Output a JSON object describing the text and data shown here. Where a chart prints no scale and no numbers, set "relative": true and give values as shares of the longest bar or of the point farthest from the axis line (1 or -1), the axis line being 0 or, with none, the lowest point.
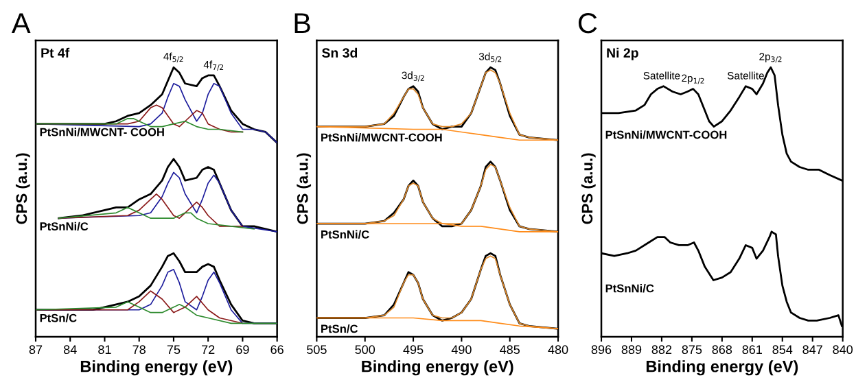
{
  "chart_data": [
    {
      "type": "line",
      "title": "Pt 4f",
      "xlabel": "Binding energy (eV)",
      "ylabel": "CPS (a.u.)",
      "relative": true,
      "tick_labels": "x",
      "grid": false,
      "legend": false,
      "xlim": [
        87,
        66
      ],
      "xticks": [
        87,
        84,
        81,
        78,
        75,
        72,
        69,
        66
      ],
      "annotations": [
        "A",
        {
          "text": "4f$_{5/2}$",
          "x": 75,
          "y": 1.0
        },
        {
          "text": "4f$_{7/2}$",
          "x": 71.5,
          "y": 0.97
        }
      ],
      "series": [
        {
          "name": "PtSnNi/MWCNT- COOH",
          "color": "#000000",
          "x": [
            87,
            85,
            83,
            81,
            80,
            79,
            78,
            77,
            76,
            75.5,
            75,
            74.5,
            74,
            73,
            72.5,
            72,
            71.5,
            71,
            70,
            69,
            68,
            67,
            66
          ],
          "values": [
            0.79,
            0.79,
            0.79,
            0.79,
            0.8,
            0.82,
            0.83,
            0.86,
            0.9,
            0.95,
            1.0,
            0.98,
            0.94,
            0.93,
            0.96,
            0.97,
            0.97,
            0.93,
            0.84,
            0.79,
            0.77,
            0.76,
            0.72
          ]
        },
        {
          "color": "#1c1c9c",
          "x": [
            87,
            78,
            77,
            76,
            75.5,
            75,
            74.5,
            74,
            73,
            72.5,
            72,
            71.5,
            71,
            70,
            69,
            68,
            67,
            66
          ],
          "values": [
            0.79,
            0.78,
            0.79,
            0.83,
            0.89,
            0.94,
            0.93,
            0.88,
            0.8,
            0.83,
            0.9,
            0.94,
            0.93,
            0.83,
            0.77,
            0.77,
            0.76,
            0.72
          ]
        },
        {
          "color": "#8b1a1a",
          "x": [
            87,
            79,
            78,
            77,
            76.5,
            76,
            75,
            74.5,
            74,
            73,
            72.5,
            72,
            71,
            70,
            69
          ],
          "values": [
            0.79,
            0.79,
            0.8,
            0.85,
            0.86,
            0.85,
            0.79,
            0.78,
            0.8,
            0.84,
            0.83,
            0.79,
            0.77,
            0.76,
            0.76
          ]
        },
        {
          "color": "#2e8b2e",
          "x": [
            87,
            80,
            79,
            78.5,
            78,
            77,
            76,
            75,
            74,
            73,
            72,
            71,
            69
          ],
          "values": [
            0.79,
            0.79,
            0.81,
            0.81,
            0.8,
            0.78,
            0.78,
            0.79,
            0.8,
            0.78,
            0.77,
            0.77,
            0.76
          ]
        },
        {
          "name": "PtSnNi/C",
          "color": "#000000",
          "x": [
            85,
            83,
            81,
            80,
            79,
            78,
            77,
            76,
            75.5,
            75,
            74.5,
            74,
            73,
            72.5,
            72,
            71.5,
            71,
            70,
            69,
            68,
            67,
            66
          ],
          "values": [
            0.44,
            0.45,
            0.47,
            0.48,
            0.48,
            0.51,
            0.53,
            0.58,
            0.63,
            0.66,
            0.63,
            0.58,
            0.59,
            0.62,
            0.63,
            0.62,
            0.57,
            0.47,
            0.41,
            0.41,
            0.4,
            0.39
          ]
        },
        {
          "color": "#1c1c9c",
          "x": [
            85,
            78,
            77,
            76,
            75.5,
            75,
            74.5,
            74,
            73,
            72.5,
            72,
            71.5,
            71,
            70,
            69,
            66
          ],
          "values": [
            0.44,
            0.45,
            0.46,
            0.52,
            0.57,
            0.61,
            0.59,
            0.53,
            0.46,
            0.51,
            0.57,
            0.6,
            0.57,
            0.47,
            0.41,
            0.39
          ]
        },
        {
          "color": "#8b1a1a",
          "x": [
            85,
            79,
            78,
            77,
            76.5,
            76,
            75,
            74.5,
            74,
            73,
            72.5,
            72,
            71,
            69
          ],
          "values": [
            0.44,
            0.45,
            0.47,
            0.51,
            0.53,
            0.51,
            0.45,
            0.44,
            0.46,
            0.5,
            0.48,
            0.45,
            0.41,
            0.41
          ]
        },
        {
          "color": "#2e8b2e",
          "x": [
            85,
            80,
            79,
            78.5,
            78,
            77,
            75,
            74,
            73.5,
            73,
            72,
            70,
            68
          ],
          "values": [
            0.44,
            0.46,
            0.48,
            0.47,
            0.46,
            0.44,
            0.44,
            0.46,
            0.46,
            0.44,
            0.42,
            0.41,
            0.4
          ]
        },
        {
          "name": "PtSn/C",
          "color": "#000000",
          "x": [
            87,
            84,
            82,
            80,
            79,
            78,
            77,
            76,
            75.5,
            75,
            74.5,
            74,
            73,
            72.5,
            72,
            71.5,
            71,
            70,
            69,
            68,
            66
          ],
          "values": [
            0.1,
            0.1,
            0.1,
            0.12,
            0.13,
            0.15,
            0.19,
            0.26,
            0.3,
            0.31,
            0.28,
            0.24,
            0.24,
            0.26,
            0.27,
            0.26,
            0.21,
            0.12,
            0.06,
            0.05,
            0.05
          ]
        },
        {
          "color": "#1c1c9c",
          "x": [
            87,
            78,
            77,
            76,
            75.5,
            75,
            74.5,
            74,
            73,
            72.5,
            72,
            71.5,
            71,
            70,
            69,
            66
          ],
          "values": [
            0.1,
            0.1,
            0.12,
            0.19,
            0.24,
            0.25,
            0.2,
            0.13,
            0.1,
            0.15,
            0.21,
            0.24,
            0.2,
            0.1,
            0.05,
            0.05
          ]
        },
        {
          "color": "#8b1a1a",
          "x": [
            87,
            79,
            78,
            77,
            76,
            75,
            74,
            73,
            72,
            71,
            69
          ],
          "values": [
            0.1,
            0.1,
            0.13,
            0.17,
            0.14,
            0.09,
            0.11,
            0.15,
            0.1,
            0.07,
            0.05
          ]
        },
        {
          "color": "#2e8b2e",
          "x": [
            87,
            80,
            79,
            78,
            77,
            76,
            75,
            74.5,
            74,
            73,
            72,
            70,
            66
          ],
          "values": [
            0.1,
            0.11,
            0.13,
            0.11,
            0.09,
            0.09,
            0.11,
            0.12,
            0.11,
            0.08,
            0.07,
            0.05,
            0.05
          ]
        }
      ]
    },
    {
      "type": "line",
      "title": "Sn 3d",
      "xlabel": "Binding energy (eV)",
      "ylabel": "CPS (a.u.)",
      "relative": true,
      "tick_labels": "x",
      "grid": false,
      "legend": false,
      "xlim": [
        505,
        480
      ],
      "xticks": [
        505,
        500,
        495,
        490,
        485,
        480
      ],
      "annotations": [
        "B",
        {
          "text": "3d$_{3/2}$",
          "x": 495,
          "y": 0.93
        },
        {
          "text": "3d$_{5/2}$",
          "x": 487,
          "y": 1.0
        }
      ],
      "series": [
        {
          "name": "PtSnNi/MWCNT-COOH",
          "color": "#000000",
          "x": [
            505,
            500,
            498,
            497,
            496,
            495.5,
            495,
            494.5,
            494,
            493,
            492,
            491,
            490,
            489,
            488,
            487.5,
            487,
            486.5,
            486,
            485,
            484,
            483,
            480
          ],
          "values": [
            0.78,
            0.78,
            0.79,
            0.82,
            0.89,
            0.92,
            0.93,
            0.91,
            0.85,
            0.79,
            0.77,
            0.78,
            0.78,
            0.83,
            0.93,
            0.98,
            1.0,
            0.99,
            0.94,
            0.82,
            0.75,
            0.74,
            0.73
          ]
        },
        {
          "color": "#e08a2c",
          "x": [
            505,
            500,
            498,
            497,
            496,
            495.5,
            495,
            494.5,
            494,
            493,
            492,
            491,
            490,
            489,
            488,
            487.5,
            487,
            486.5,
            486,
            485,
            484,
            483,
            480
          ],
          "values": [
            0.78,
            0.78,
            0.79,
            0.83,
            0.89,
            0.92,
            0.92,
            0.9,
            0.85,
            0.79,
            0.78,
            0.78,
            0.79,
            0.83,
            0.93,
            0.98,
            0.99,
            0.98,
            0.94,
            0.83,
            0.75,
            0.74,
            0.73
          ]
        },
        {
          "color": "#ff8c1a",
          "x": [
            505,
            495,
            492,
            490,
            488,
            486,
            484,
            480
          ],
          "values": [
            0.78,
            0.77,
            0.77,
            0.76,
            0.75,
            0.74,
            0.73,
            0.73
          ]
        },
        {
          "name": "PtSnNi/C",
          "color": "#000000",
          "x": [
            505,
            500,
            498,
            497,
            496,
            495.5,
            495,
            494.5,
            494,
            493,
            492,
            491,
            490,
            489,
            488,
            487.5,
            487,
            486.5,
            486,
            485,
            484,
            483,
            480
          ],
          "values": [
            0.42,
            0.42,
            0.43,
            0.46,
            0.51,
            0.56,
            0.58,
            0.56,
            0.5,
            0.44,
            0.41,
            0.41,
            0.42,
            0.47,
            0.56,
            0.63,
            0.65,
            0.63,
            0.58,
            0.47,
            0.41,
            0.4,
            0.39
          ]
        },
        {
          "color": "#e08a2c",
          "x": [
            505,
            500,
            498,
            497,
            496,
            495.5,
            495,
            494.5,
            494,
            493,
            492,
            491,
            490,
            489,
            488,
            487.5,
            487,
            486.5,
            486,
            485,
            484,
            483,
            480
          ],
          "values": [
            0.42,
            0.42,
            0.43,
            0.45,
            0.51,
            0.56,
            0.57,
            0.56,
            0.5,
            0.44,
            0.42,
            0.42,
            0.42,
            0.47,
            0.56,
            0.62,
            0.64,
            0.63,
            0.58,
            0.48,
            0.41,
            0.4,
            0.39
          ]
        },
        {
          "color": "#ff8c1a",
          "x": [
            505,
            495,
            492,
            490,
            488,
            486,
            484,
            480
          ],
          "values": [
            0.42,
            0.42,
            0.42,
            0.41,
            0.41,
            0.4,
            0.39,
            0.39
          ]
        },
        {
          "name": "PtSn/C",
          "color": "#000000",
          "x": [
            505,
            500,
            498,
            497,
            496,
            495.5,
            495,
            494.5,
            494,
            493,
            492,
            491,
            490,
            489,
            488,
            487.5,
            487,
            486.5,
            486,
            485,
            484,
            483,
            480
          ],
          "values": [
            0.07,
            0.07,
            0.08,
            0.12,
            0.2,
            0.24,
            0.23,
            0.2,
            0.14,
            0.08,
            0.06,
            0.07,
            0.09,
            0.14,
            0.25,
            0.3,
            0.31,
            0.3,
            0.23,
            0.12,
            0.05,
            0.04,
            0.03
          ]
        },
        {
          "color": "#e08a2c",
          "x": [
            505,
            500,
            498,
            497,
            496,
            495.5,
            495,
            494.5,
            494,
            493,
            492,
            491,
            490,
            489,
            488,
            487.5,
            487,
            486.5,
            486,
            485,
            484,
            483,
            480
          ],
          "values": [
            0.07,
            0.07,
            0.08,
            0.11,
            0.2,
            0.23,
            0.23,
            0.2,
            0.14,
            0.08,
            0.07,
            0.07,
            0.09,
            0.14,
            0.25,
            0.29,
            0.3,
            0.29,
            0.23,
            0.12,
            0.05,
            0.04,
            0.03
          ]
        },
        {
          "color": "#ff8c1a",
          "x": [
            505,
            495,
            492,
            490,
            488,
            486,
            484,
            480
          ],
          "values": [
            0.07,
            0.07,
            0.06,
            0.06,
            0.06,
            0.05,
            0.04,
            0.03
          ]
        }
      ]
    },
    {
      "type": "line",
      "title": "Ni 2p",
      "xlabel": "Binding energy (eV)",
      "ylabel": "CPS (a.u.)",
      "relative": true,
      "tick_labels": "x",
      "grid": false,
      "legend": false,
      "xlim": [
        896,
        840
      ],
      "xticks": [
        896,
        889,
        882,
        875,
        868,
        861,
        854,
        847,
        840
      ],
      "annotations": [
        "C",
        {
          "text": "Satellite",
          "x": 882,
          "y": 0.93
        },
        {
          "text": "2p$_{1/2}$",
          "x": 874.7,
          "y": 0.92
        },
        {
          "text": "Satellite",
          "x": 862.5,
          "y": 0.93
        },
        {
          "text": "2p$_{3/2}$",
          "x": 856.7,
          "y": 1.0
        }
      ],
      "series": [
        {
          "name": "PtSnNi/MWCNT-COOH",
          "color": "#000000",
          "x": [
            896,
            892,
            888,
            886,
            884.5,
            883,
            881.6,
            879.5,
            877.6,
            876,
            874.7,
            873.5,
            872,
            871,
            869.9,
            868,
            866,
            864,
            862.5,
            861,
            860,
            858.5,
            857.5,
            856.7,
            855.8,
            855,
            854,
            853,
            852,
            850,
            848,
            845.5,
            843,
            840.2
          ],
          "values": [
            0.83,
            0.83,
            0.84,
            0.86,
            0.9,
            0.92,
            0.93,
            0.91,
            0.9,
            0.91,
            0.92,
            0.9,
            0.84,
            0.8,
            0.78,
            0.8,
            0.84,
            0.89,
            0.93,
            0.92,
            0.9,
            0.94,
            0.98,
            1.0,
            0.97,
            0.86,
            0.75,
            0.68,
            0.65,
            0.63,
            0.62,
            0.62,
            0.6,
            0.58
          ]
        },
        {
          "name": "PtSnNi/C",
          "color": "#000000",
          "x": [
            896,
            893,
            890,
            888,
            885,
            883,
            881.3,
            880,
            878,
            876,
            874.5,
            873.5,
            872,
            870,
            868,
            866,
            864,
            862.5,
            861,
            860,
            858.5,
            857,
            856.5,
            855.5,
            855,
            854,
            853,
            852,
            850,
            848,
            846,
            843,
            841,
            840.2
          ],
          "values": [
            0.31,
            0.3,
            0.31,
            0.32,
            0.35,
            0.37,
            0.37,
            0.35,
            0.34,
            0.34,
            0.35,
            0.32,
            0.26,
            0.21,
            0.22,
            0.24,
            0.29,
            0.34,
            0.33,
            0.29,
            0.32,
            0.37,
            0.39,
            0.38,
            0.3,
            0.19,
            0.13,
            0.09,
            0.07,
            0.06,
            0.06,
            0.07,
            0.08,
            0.04
          ]
        }
      ]
    }
  ]
}
